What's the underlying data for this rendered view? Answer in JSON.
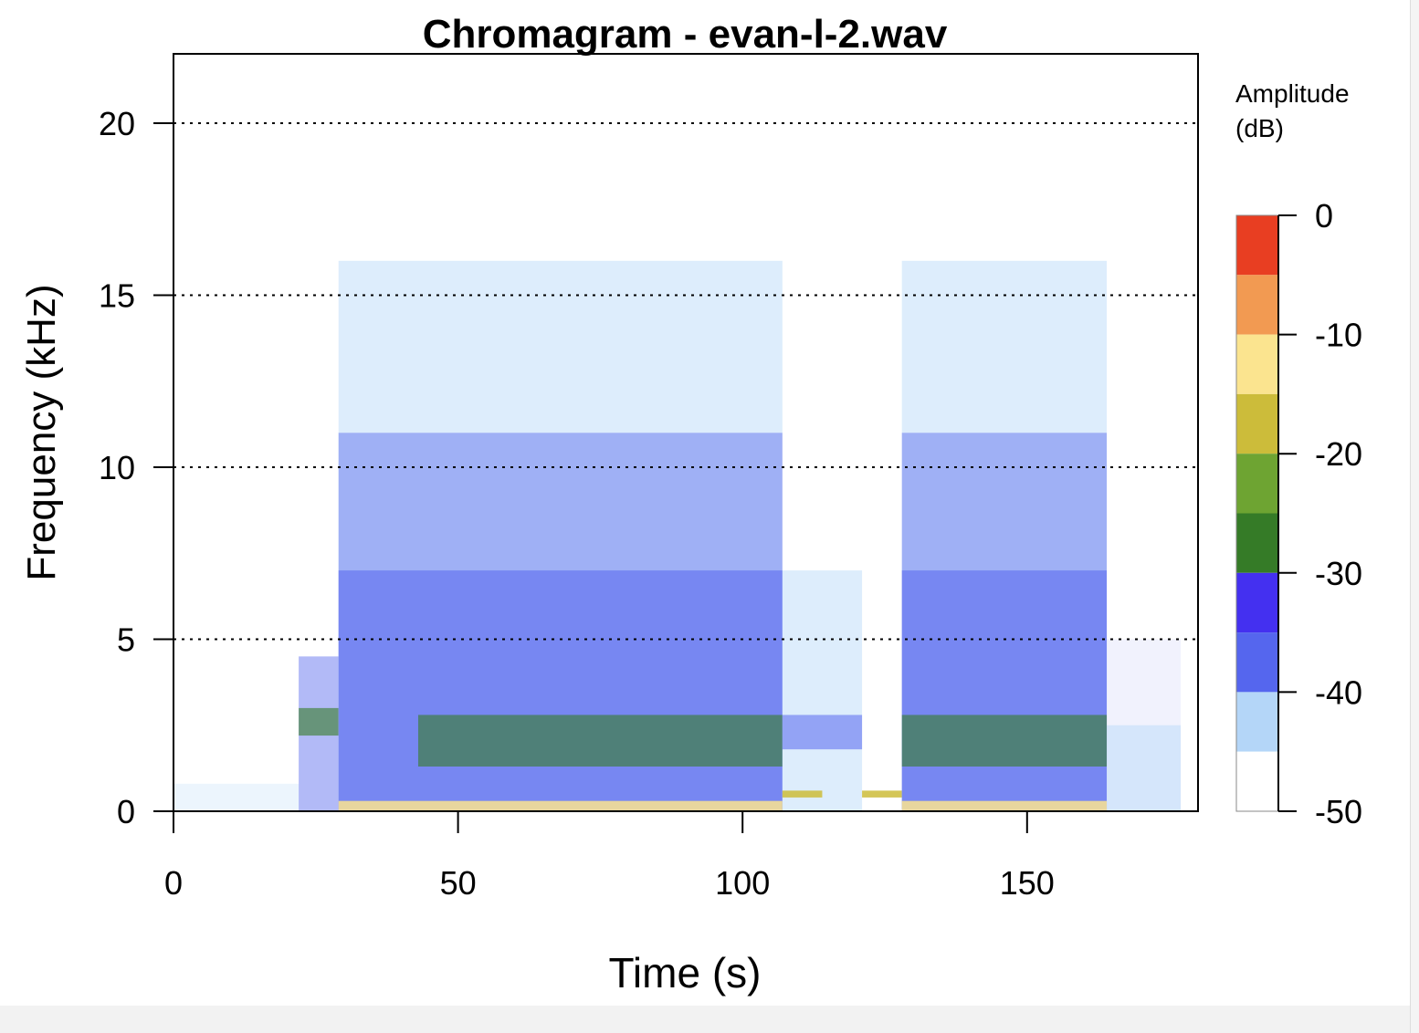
{
  "chart_data": {
    "type": "heatmap",
    "title": "Chromagram - evan-l-2.wav",
    "xlabel": "Time (s)",
    "ylabel": "Frequency (kHz)",
    "xlim": [
      0,
      180
    ],
    "ylim": [
      0,
      22
    ],
    "x_ticks": [
      "0",
      "50",
      "100",
      "150"
    ],
    "y_ticks": [
      "0",
      "5",
      "10",
      "15",
      "20"
    ],
    "grid": "dotted horizontal at 5, 10, 15, 20 kHz",
    "colorbar": {
      "title_line1": "Amplitude",
      "title_line2": "(dB)",
      "ticks": [
        "0",
        "-10",
        "-20",
        "-30",
        "-40",
        "-50"
      ],
      "levels": [
        {
          "from": -5,
          "to": 0,
          "color": "#E83E22"
        },
        {
          "from": -10,
          "to": -5,
          "color": "#F29A52"
        },
        {
          "from": -15,
          "to": -10,
          "color": "#FBE48F"
        },
        {
          "from": -20,
          "to": -15,
          "color": "#CCBC3A"
        },
        {
          "from": -25,
          "to": -20,
          "color": "#6EA432"
        },
        {
          "from": -30,
          "to": -25,
          "color": "#357B27"
        },
        {
          "from": -35,
          "to": -30,
          "color": "#4430F0"
        },
        {
          "from": -40,
          "to": -35,
          "color": "#5566EE"
        },
        {
          "from": -45,
          "to": -40,
          "color": "#B4D6F8"
        },
        {
          "from": -50,
          "to": -45,
          "color": "#FFFFFF"
        }
      ]
    },
    "energy_regions": [
      {
        "t0": 0,
        "t1": 22,
        "f0": 0,
        "f1": 0.8,
        "db": -45
      },
      {
        "t0": 22,
        "t1": 29,
        "f0": 0,
        "f1": 4.5,
        "db": -40
      },
      {
        "t0": 22,
        "t1": 29,
        "f0": 2.2,
        "f1": 3.0,
        "db": -30
      },
      {
        "t0": 29,
        "t1": 107,
        "f0": 0,
        "f1": 16,
        "db": -43
      },
      {
        "t0": 29,
        "t1": 107,
        "f0": 0,
        "f1": 11,
        "db": -40
      },
      {
        "t0": 29,
        "t1": 107,
        "f0": 0,
        "f1": 7,
        "db": -37
      },
      {
        "t0": 43,
        "t1": 107,
        "f0": 1.3,
        "f1": 2.8,
        "db": -30
      },
      {
        "t0": 29,
        "t1": 107,
        "f0": 0,
        "f1": 0.3,
        "db": -15
      },
      {
        "t0": 107,
        "t1": 121,
        "f0": 0,
        "f1": 7,
        "db": -44
      },
      {
        "t0": 107,
        "t1": 121,
        "f0": 1.8,
        "f1": 2.8,
        "db": -38
      },
      {
        "t0": 107,
        "t1": 114,
        "f0": 0.4,
        "f1": 0.6,
        "db": -20
      },
      {
        "t0": 121,
        "t1": 128,
        "f0": 0.4,
        "f1": 0.6,
        "db": -20
      },
      {
        "t0": 128,
        "t1": 164,
        "f0": 0,
        "f1": 16,
        "db": -43
      },
      {
        "t0": 128,
        "t1": 164,
        "f0": 0,
        "f1": 11,
        "db": -40
      },
      {
        "t0": 128,
        "t1": 164,
        "f0": 0,
        "f1": 7,
        "db": -37
      },
      {
        "t0": 128,
        "t1": 164,
        "f0": 1.3,
        "f1": 2.8,
        "db": -30
      },
      {
        "t0": 128,
        "t1": 164,
        "f0": 0,
        "f1": 0.3,
        "db": -15
      },
      {
        "t0": 164,
        "t1": 177,
        "f0": 0,
        "f1": 5,
        "db": -46
      },
      {
        "t0": 164,
        "t1": 177,
        "f0": 0,
        "f1": 2.5,
        "db": -43
      }
    ]
  }
}
